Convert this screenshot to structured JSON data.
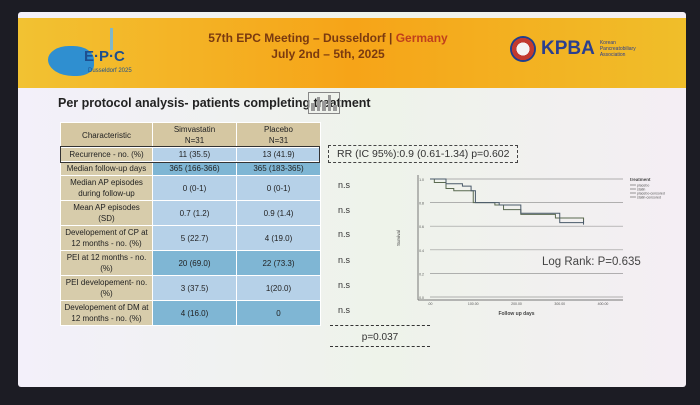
{
  "header": {
    "title_line1_a": "57th EPC Meeting – Dusseldorf |",
    "title_line1_b": "Germany",
    "title_line2": "July 2nd – 5th, 2025",
    "epc_logo": "E·P·C",
    "epc_logo_sub": "Dusseldorf 2025",
    "kpba_logo": "KPBA",
    "kpba_logo_sub": "Korean Pancreatobiliary Association"
  },
  "slide_title": "Per protocol analysis- patients completing treatment",
  "table": {
    "headers": [
      "Characteristic",
      "Simvastatin\nN=31",
      "Placebo\nN=31"
    ],
    "rows": [
      [
        "Recurrence - no. (%)",
        "11 (35.5)",
        "13 (41.9)"
      ],
      [
        "Median follow-up days",
        "365 (166-366)",
        "365 (183-365)"
      ],
      [
        "Median AP episodes during follow-up",
        "0 (0-1)",
        "0 (0-1)"
      ],
      [
        "Mean AP episodes (SD)",
        "0.7 (1.2)",
        "0.9 (1.4)"
      ],
      [
        "Developement of CP at 12 months - no. (%)",
        "5 (22.7)",
        "4 (19.0)"
      ],
      [
        "PEI at 12 months - no. (%)",
        "20 (69.0)",
        "22 (73.3)"
      ],
      [
        "PEI developement- no. (%)",
        "3 (37.5)",
        "1(20.0)"
      ],
      [
        "Developement of DM at 12 months - no. (%)",
        "4 (16.0)",
        "0"
      ]
    ]
  },
  "significance": [
    "n.s",
    "n.s",
    "n.s",
    "n.s",
    "n.s",
    "n.s"
  ],
  "rr_text": "RR (IC 95%):0.9 (0.61-1.34) p=0.602",
  "p_text": "p=0.037",
  "log_rank": "Log Rank: P=0.635",
  "chart_data": {
    "type": "line",
    "xlabel": "Follow up days",
    "ylabel": "Survival",
    "xlim": [
      0,
      400
    ],
    "ylim": [
      0,
      1
    ],
    "xticks": [
      ".00",
      "100.00",
      "200.00",
      "300.00",
      "400.00"
    ],
    "yticks": [
      "0.0",
      "0.2",
      "0.4",
      "0.6",
      "0.8",
      "1.0"
    ],
    "grid": "horizontal",
    "legend": {
      "title": "treatment",
      "entries": [
        "placebo",
        "statin",
        "placebo-censored",
        "statin-censored"
      ],
      "placement": "right"
    },
    "series": [
      {
        "name": "statin",
        "color": "#5a6a50",
        "points": [
          [
            0,
            1
          ],
          [
            10,
            0.97
          ],
          [
            37,
            0.92
          ],
          [
            55,
            0.9
          ],
          [
            100,
            0.8
          ],
          [
            150,
            0.78
          ],
          [
            170,
            0.74
          ],
          [
            210,
            0.7
          ],
          [
            290,
            0.67
          ],
          [
            355,
            0.65
          ]
        ]
      },
      {
        "name": "placebo",
        "color": "#4a5a6a",
        "points": [
          [
            0,
            1
          ],
          [
            37,
            0.96
          ],
          [
            75,
            0.94
          ],
          [
            95,
            0.9
          ],
          [
            105,
            0.8
          ],
          [
            160,
            0.78
          ],
          [
            210,
            0.71
          ],
          [
            300,
            0.63
          ],
          [
            355,
            0.63
          ]
        ]
      }
    ]
  }
}
